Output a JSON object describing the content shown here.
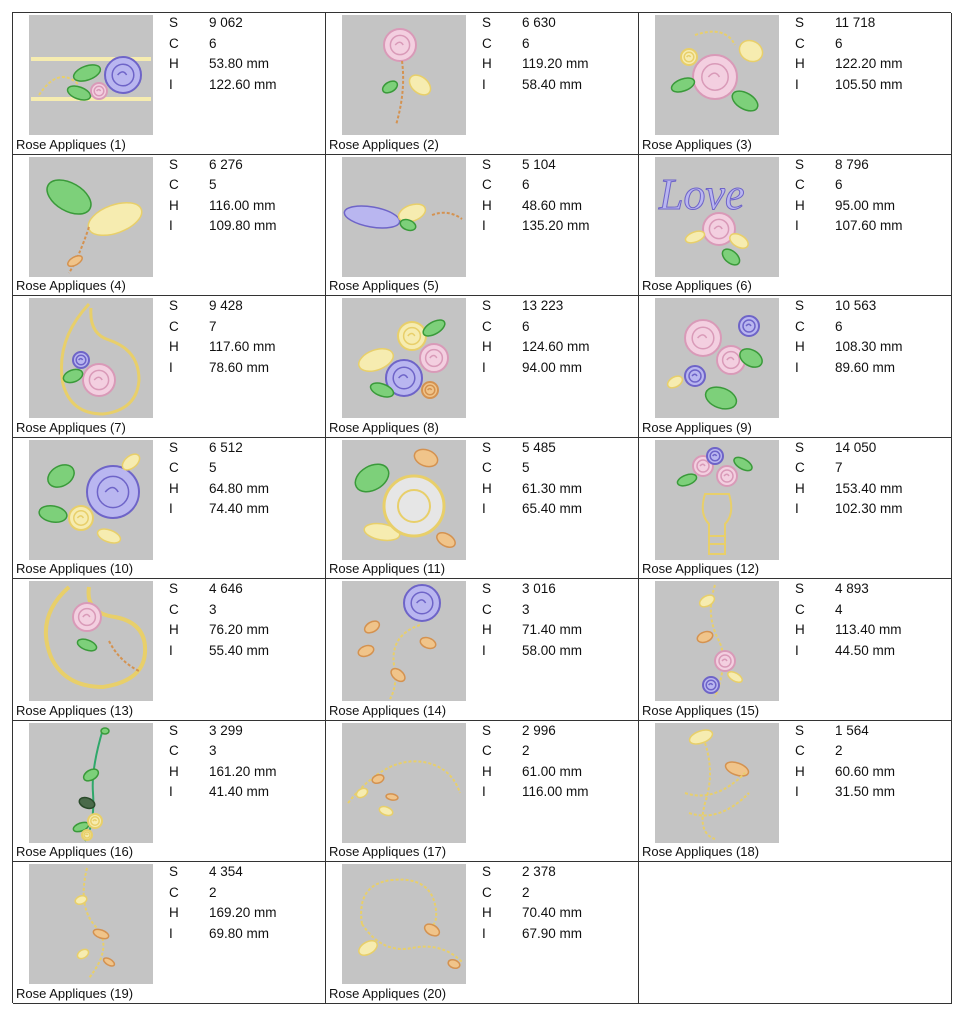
{
  "keys": [
    "S",
    "C",
    "H",
    "I"
  ],
  "items": [
    {
      "name": "Rose Appliques (1)",
      "S": "9 062",
      "C": "6",
      "H": "53.80 mm",
      "I": "122.60 mm"
    },
    {
      "name": "Rose Appliques (2)",
      "S": "6 630",
      "C": "6",
      "H": "119.20 mm",
      "I": "58.40 mm"
    },
    {
      "name": "Rose Appliques (3)",
      "S": "11 718",
      "C": "6",
      "H": "122.20 mm",
      "I": "105.50 mm"
    },
    {
      "name": "Rose Appliques (4)",
      "S": "6 276",
      "C": "5",
      "H": "116.00 mm",
      "I": "109.80 mm"
    },
    {
      "name": "Rose Appliques (5)",
      "S": "5 104",
      "C": "6",
      "H": "48.60 mm",
      "I": "135.20 mm"
    },
    {
      "name": "Rose Appliques (6)",
      "S": "8 796",
      "C": "6",
      "H": "95.00 mm",
      "I": "107.60 mm",
      "label": "Love"
    },
    {
      "name": "Rose Appliques (7)",
      "S": "9 428",
      "C": "7",
      "H": "117.60 mm",
      "I": "78.60 mm"
    },
    {
      "name": "Rose Appliques (8)",
      "S": "13 223",
      "C": "6",
      "H": "124.60 mm",
      "I": "94.00 mm"
    },
    {
      "name": "Rose Appliques (9)",
      "S": "10 563",
      "C": "6",
      "H": "108.30 mm",
      "I": "89.60 mm"
    },
    {
      "name": "Rose Appliques (10)",
      "S": "6 512",
      "C": "5",
      "H": "64.80 mm",
      "I": "74.40 mm"
    },
    {
      "name": "Rose Appliques (11)",
      "S": "5 485",
      "C": "5",
      "H": "61.30 mm",
      "I": "65.40 mm"
    },
    {
      "name": "Rose Appliques (12)",
      "S": "14 050",
      "C": "7",
      "H": "153.40 mm",
      "I": "102.30 mm"
    },
    {
      "name": "Rose Appliques (13)",
      "S": "4 646",
      "C": "3",
      "H": "76.20 mm",
      "I": "55.40 mm"
    },
    {
      "name": "Rose Appliques (14)",
      "S": "3 016",
      "C": "3",
      "H": "71.40 mm",
      "I": "58.00 mm"
    },
    {
      "name": "Rose Appliques (15)",
      "S": "4 893",
      "C": "4",
      "H": "113.40 mm",
      "I": "44.50 mm"
    },
    {
      "name": "Rose Appliques (16)",
      "S": "3 299",
      "C": "3",
      "H": "161.20 mm",
      "I": "41.40 mm"
    },
    {
      "name": "Rose Appliques (17)",
      "S": "2 996",
      "C": "2",
      "H": "61.00 mm",
      "I": "116.00 mm"
    },
    {
      "name": "Rose Appliques (18)",
      "S": "1 564",
      "C": "2",
      "H": "60.60 mm",
      "I": "31.50 mm"
    },
    {
      "name": "Rose Appliques (19)",
      "S": "4 354",
      "C": "2",
      "H": "169.20 mm",
      "I": "69.80 mm"
    },
    {
      "name": "Rose Appliques (20)",
      "S": "2 378",
      "C": "2",
      "H": "70.40 mm",
      "I": "67.90 mm"
    }
  ]
}
